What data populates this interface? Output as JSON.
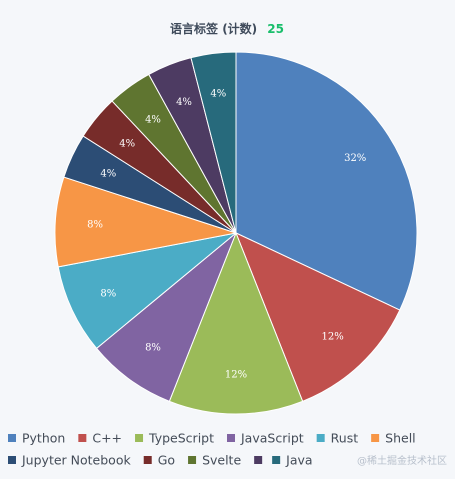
{
  "watermark": "@稀土掘金技术社区",
  "chart_data": {
    "type": "pie",
    "title": "语言标签 (计数)",
    "title_count": "25",
    "slices": [
      {
        "name": "Python",
        "value": 32,
        "label": "32%",
        "color": "#4f81bd"
      },
      {
        "name": "C++",
        "value": 12,
        "label": "12%",
        "color": "#c0504d"
      },
      {
        "name": "TypeScript",
        "value": 12,
        "label": "12%",
        "color": "#9bbb59"
      },
      {
        "name": "JavaScript",
        "value": 8,
        "label": "8%",
        "color": "#8064a2"
      },
      {
        "name": "Rust",
        "value": 8,
        "label": "8%",
        "color": "#4bacc6"
      },
      {
        "name": "Shell",
        "value": 8,
        "label": "8%",
        "color": "#f79646"
      },
      {
        "name": "Jupyter Notebook",
        "value": 4,
        "label": "4%",
        "color": "#2c4d75"
      },
      {
        "name": "Go",
        "value": 4,
        "label": "4%",
        "color": "#772c2a"
      },
      {
        "name": "Svelte",
        "value": 4,
        "label": "4%",
        "color": "#5f7530"
      },
      {
        "name": "",
        "value": 4,
        "label": "4%",
        "color": "#4d3b62"
      },
      {
        "name": "Java",
        "value": 4,
        "label": "4%",
        "color": "#276a7c"
      }
    ],
    "legend_position": "bottom"
  }
}
